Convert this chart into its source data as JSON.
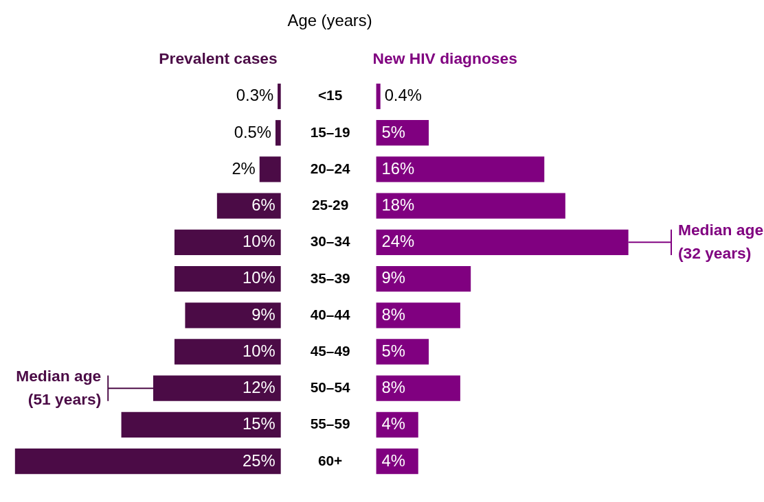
{
  "chart_data": [
    {
      "type": "bar",
      "orientation": "horizontal",
      "title": "Prevalent cases",
      "ylabel": "Age (years)",
      "color": "#4b0b46",
      "tick_labels": "y",
      "categories": [
        "<15",
        "15–19",
        "20–24",
        "25-29",
        "30–34",
        "35–39",
        "40–44",
        "45–49",
        "50–54",
        "55–59",
        "60+"
      ],
      "values": [
        0.3,
        0.5,
        2,
        6,
        10,
        10,
        9,
        10,
        12,
        15,
        25
      ],
      "value_labels": [
        "0.3%",
        "0.5%",
        "2%",
        "6%",
        "10%",
        "10%",
        "9%",
        "10%",
        "12%",
        "15%",
        "25%"
      ],
      "annotations": [
        "Median age\n(51 years)"
      ]
    },
    {
      "type": "bar",
      "orientation": "horizontal",
      "title": "New HIV diagnoses",
      "color": "#800080",
      "tick_labels": false,
      "categories": [
        null,
        null,
        null,
        null,
        null,
        null,
        null,
        null,
        null,
        null,
        null
      ],
      "values": [
        0.4,
        5,
        16,
        18,
        24,
        9,
        8,
        5,
        8,
        4,
        4
      ],
      "value_labels": [
        "0.4%",
        "5%",
        "16%",
        "18%",
        "24%",
        "9%",
        "8%",
        "5%",
        "8%",
        "4%",
        "4%"
      ],
      "annotations": [
        "Median age\n(32 years)"
      ]
    }
  ]
}
